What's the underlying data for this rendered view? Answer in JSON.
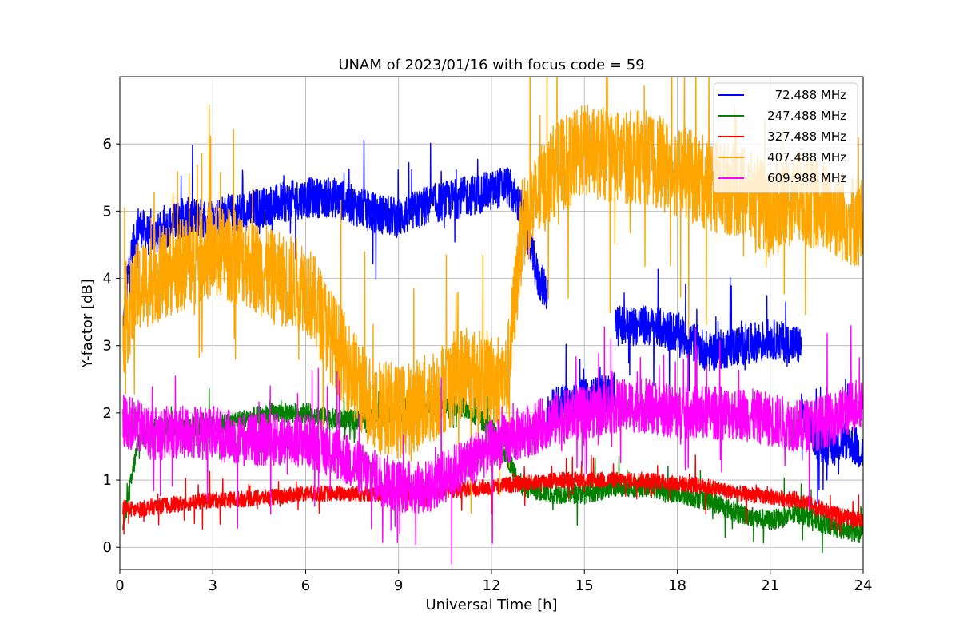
{
  "chart_data": {
    "type": "line",
    "title": "UNAM of 2023/01/16 with focus code = 59",
    "xlabel": "Universal Time [h]",
    "ylabel": "Y-factor [dB]",
    "xlim": [
      0,
      24
    ],
    "ylim": [
      -0.33,
      7.0
    ],
    "xticks": [
      0,
      3,
      6,
      9,
      12,
      15,
      18,
      21,
      24
    ],
    "yticks": [
      0,
      1,
      2,
      3,
      4,
      5,
      6
    ],
    "grid": true,
    "legend_position": "top-right",
    "series": [
      {
        "name": "72.488 MHz",
        "color": "#0000ff",
        "noise": 0.3,
        "segments": [
          {
            "x": [
              0.1,
              0.3,
              0.6,
              1.0,
              2.0,
              3.0,
              4.0,
              5.0,
              6.0,
              7.0,
              8.0,
              9.0,
              10.0,
              11.0,
              12.0,
              12.5,
              13.0,
              13.5,
              13.8
            ],
            "y": [
              3.2,
              4.2,
              4.8,
              4.6,
              4.9,
              4.9,
              5.0,
              5.1,
              5.2,
              5.2,
              5.0,
              4.9,
              5.1,
              5.2,
              5.3,
              5.4,
              5.0,
              4.0,
              3.8
            ]
          },
          {
            "x": [
              13.8,
              14.0,
              15.0,
              16.0
            ],
            "y": [
              2.0,
              2.1,
              2.2,
              2.3
            ]
          },
          {
            "x": [
              16.0,
              17.0,
              18.0,
              19.0,
              20.0,
              21.0,
              22.0
            ],
            "y": [
              3.3,
              3.3,
              3.2,
              2.9,
              3.0,
              3.1,
              3.0
            ]
          },
          {
            "x": [
              22.0,
              22.5,
              23.0,
              23.5,
              24.0
            ],
            "y": [
              2.0,
              1.6,
              1.5,
              1.6,
              1.4
            ]
          }
        ]
      },
      {
        "name": "247.488 MHz",
        "color": "#008000",
        "noise": 0.15,
        "segments": [
          {
            "x": [
              0.1,
              0.3,
              0.6,
              1.0,
              2.0,
              3.0,
              4.0,
              5.0,
              6.0,
              7.0,
              8.0,
              9.0,
              10.0,
              11.0,
              12.0,
              13.0,
              14.0,
              15.0,
              16.0,
              17.0,
              18.0,
              19.0,
              20.0,
              21.0,
              22.0,
              23.0,
              24.0
            ],
            "y": [
              0.3,
              0.8,
              1.6,
              1.8,
              1.8,
              1.8,
              1.9,
              2.0,
              2.0,
              1.9,
              1.9,
              2.0,
              2.1,
              2.1,
              1.8,
              0.9,
              0.8,
              0.8,
              0.9,
              0.9,
              0.8,
              0.7,
              0.5,
              0.4,
              0.5,
              0.3,
              0.2
            ]
          }
        ]
      },
      {
        "name": "327.488 MHz",
        "color": "#ff0000",
        "noise": 0.12,
        "segments": [
          {
            "x": [
              0.1,
              0.5,
              1.0,
              2.0,
              3.0,
              4.0,
              5.0,
              6.0,
              7.0,
              8.0,
              9.0,
              10.0,
              11.0,
              12.0,
              13.0,
              14.0,
              15.0,
              16.0,
              17.0,
              18.0,
              19.0,
              20.0,
              21.0,
              22.0,
              23.0,
              24.0
            ],
            "y": [
              0.6,
              0.55,
              0.6,
              0.65,
              0.7,
              0.72,
              0.75,
              0.8,
              0.8,
              0.8,
              0.8,
              0.85,
              0.85,
              0.9,
              0.95,
              1.0,
              1.0,
              1.0,
              1.0,
              0.95,
              0.9,
              0.8,
              0.75,
              0.7,
              0.5,
              0.4
            ]
          }
        ]
      },
      {
        "name": "407.488 MHz",
        "color": "#ffa500",
        "noise": 0.7,
        "segments": [
          {
            "x": [
              0.1,
              0.5,
              1.0,
              2.0,
              3.0,
              4.0,
              5.0,
              6.0,
              7.0,
              8.0,
              9.0,
              10.0,
              11.0,
              12.0,
              12.5,
              13.0,
              13.5,
              14.0,
              15.0,
              16.0,
              17.0,
              18.0,
              19.0,
              20.0,
              21.0,
              22.0,
              23.0,
              24.0
            ],
            "y": [
              3.2,
              3.8,
              4.0,
              4.2,
              4.4,
              4.3,
              4.0,
              3.9,
              3.0,
              2.2,
              2.0,
              2.2,
              2.6,
              2.5,
              2.5,
              4.8,
              5.2,
              5.6,
              5.9,
              5.8,
              5.8,
              5.6,
              5.4,
              5.3,
              5.0,
              5.2,
              5.0,
              4.8
            ]
          }
        ]
      },
      {
        "name": "609.988 MHz",
        "color": "#ff00ff",
        "noise": 0.4,
        "segments": [
          {
            "x": [
              0.1,
              0.5,
              1.0,
              2.0,
              3.0,
              4.0,
              5.0,
              6.0,
              7.0,
              8.0,
              9.0,
              10.0,
              11.0,
              12.0,
              13.0,
              14.0,
              15.0,
              16.0,
              17.0,
              18.0,
              19.0,
              20.0,
              21.0,
              22.0,
              23.0,
              24.0
            ],
            "y": [
              1.9,
              1.8,
              1.7,
              1.7,
              1.7,
              1.6,
              1.6,
              1.6,
              1.4,
              1.1,
              0.9,
              0.9,
              1.2,
              1.5,
              1.7,
              1.9,
              2.0,
              2.1,
              2.1,
              2.0,
              2.0,
              2.0,
              1.9,
              1.8,
              1.9,
              2.2
            ]
          }
        ]
      }
    ]
  }
}
